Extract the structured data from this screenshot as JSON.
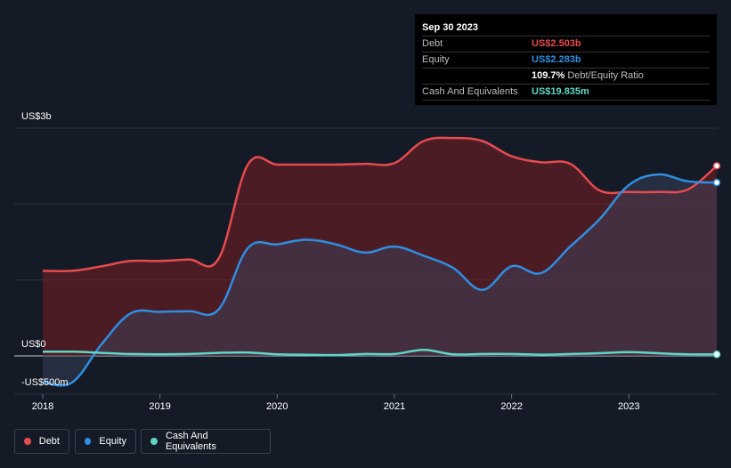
{
  "tooltip": {
    "date": "Sep 30 2023",
    "debt_label": "Debt",
    "debt_value": "US$2.503b",
    "equity_label": "Equity",
    "equity_value": "US$2.283b",
    "ratio_value": "109.7%",
    "ratio_label": "Debt/Equity Ratio",
    "cash_label": "Cash And Equivalents",
    "cash_value": "US$19.835m"
  },
  "y_axis": {
    "top_label": "US$3b",
    "zero_label": "US$0",
    "bottom_label": "-US$500m"
  },
  "legend": {
    "debt": "Debt",
    "equity": "Equity",
    "cash": "Cash And Equivalents"
  },
  "colors": {
    "debt": "#e64b4f",
    "equity": "#2f8ee0",
    "cash": "#5fd7c6",
    "background": "#151b26"
  },
  "chart_data": {
    "type": "line",
    "title": "",
    "ylim": [
      -500,
      3000
    ],
    "xlim": [
      2018,
      2023.75
    ],
    "x_ticks": [
      "2018",
      "2019",
      "2020",
      "2021",
      "2022",
      "2023"
    ],
    "grid": true,
    "legend_position": "bottom-left",
    "series": [
      {
        "name": "Debt",
        "points": [
          [
            2018,
            1120
          ],
          [
            2018.25,
            1120
          ],
          [
            2018.5,
            1180
          ],
          [
            2018.75,
            1250
          ],
          [
            2019,
            1250
          ],
          [
            2019.25,
            1270
          ],
          [
            2019.5,
            1280
          ],
          [
            2019.75,
            2520
          ],
          [
            2020,
            2520
          ],
          [
            2020.25,
            2520
          ],
          [
            2020.5,
            2520
          ],
          [
            2020.75,
            2530
          ],
          [
            2021,
            2540
          ],
          [
            2021.25,
            2830
          ],
          [
            2021.5,
            2870
          ],
          [
            2021.75,
            2830
          ],
          [
            2022,
            2630
          ],
          [
            2022.25,
            2550
          ],
          [
            2022.5,
            2530
          ],
          [
            2022.75,
            2180
          ],
          [
            2023,
            2160
          ],
          [
            2023.25,
            2160
          ],
          [
            2023.5,
            2190
          ],
          [
            2023.75,
            2503
          ]
        ]
      },
      {
        "name": "Equity",
        "points": [
          [
            2018,
            -350
          ],
          [
            2018.25,
            -350
          ],
          [
            2018.5,
            150
          ],
          [
            2018.75,
            560
          ],
          [
            2019,
            580
          ],
          [
            2019.25,
            590
          ],
          [
            2019.5,
            610
          ],
          [
            2019.75,
            1420
          ],
          [
            2020,
            1470
          ],
          [
            2020.25,
            1530
          ],
          [
            2020.5,
            1470
          ],
          [
            2020.75,
            1360
          ],
          [
            2021,
            1440
          ],
          [
            2021.25,
            1320
          ],
          [
            2021.5,
            1160
          ],
          [
            2021.75,
            870
          ],
          [
            2022,
            1180
          ],
          [
            2022.25,
            1090
          ],
          [
            2022.5,
            1440
          ],
          [
            2022.75,
            1800
          ],
          [
            2023,
            2250
          ],
          [
            2023.25,
            2390
          ],
          [
            2023.5,
            2300
          ],
          [
            2023.75,
            2283
          ]
        ]
      },
      {
        "name": "Cash And Equivalents",
        "points": [
          [
            2018,
            55
          ],
          [
            2018.25,
            55
          ],
          [
            2018.5,
            40
          ],
          [
            2018.75,
            25
          ],
          [
            2019,
            20
          ],
          [
            2019.25,
            25
          ],
          [
            2019.5,
            40
          ],
          [
            2019.75,
            45
          ],
          [
            2020,
            20
          ],
          [
            2020.25,
            15
          ],
          [
            2020.5,
            10
          ],
          [
            2020.75,
            25
          ],
          [
            2021,
            25
          ],
          [
            2021.25,
            80
          ],
          [
            2021.5,
            20
          ],
          [
            2021.75,
            25
          ],
          [
            2022,
            25
          ],
          [
            2022.25,
            15
          ],
          [
            2022.5,
            25
          ],
          [
            2022.75,
            35
          ],
          [
            2023,
            50
          ],
          [
            2023.25,
            35
          ],
          [
            2023.5,
            20
          ],
          [
            2023.75,
            19.835
          ]
        ]
      }
    ]
  }
}
